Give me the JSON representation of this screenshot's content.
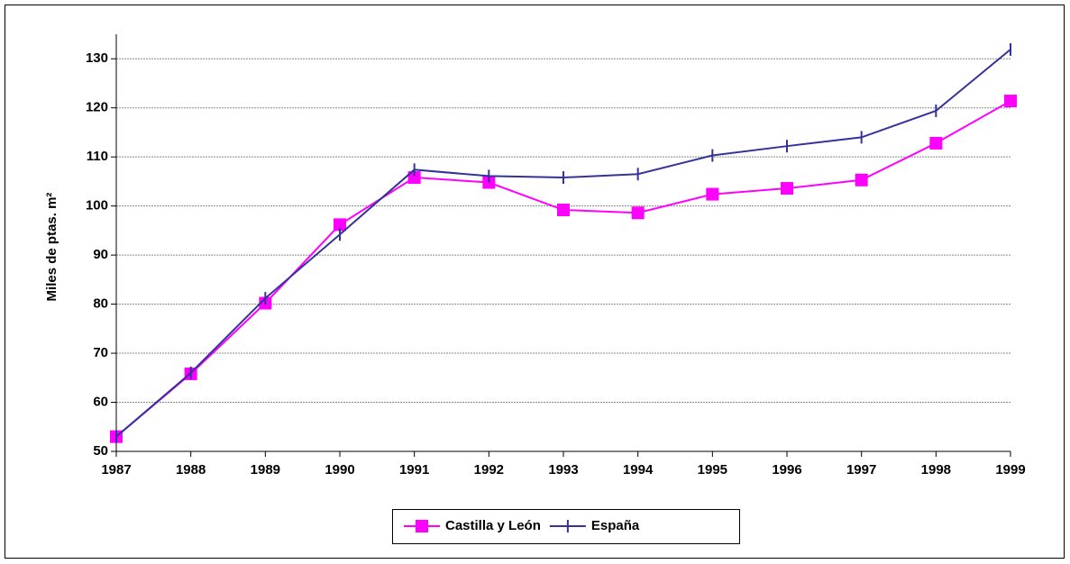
{
  "chart_data": {
    "type": "line",
    "y_label": "Miles de ptas. m²",
    "x": [
      1987,
      1988,
      1989,
      1990,
      1991,
      1992,
      1993,
      1994,
      1995,
      1996,
      1997,
      1998,
      1999
    ],
    "xlim": [
      1987,
      1999
    ],
    "xticks": [
      1987,
      1988,
      1989,
      1990,
      1991,
      1992,
      1993,
      1994,
      1995,
      1996,
      1997,
      1998,
      1999
    ],
    "ylim": [
      50,
      135
    ],
    "yticks": [
      50,
      60,
      70,
      80,
      90,
      100,
      110,
      120,
      130
    ],
    "grid": true,
    "legend": "bottom",
    "series": [
      {
        "name": "Castilla y León",
        "color": "#ff00ff",
        "marker": "square",
        "values": [
          53,
          65.8,
          80.2,
          96.2,
          105.8,
          104.8,
          99.2,
          98.6,
          102.4,
          103.6,
          105.3,
          112.8,
          121.4
        ]
      },
      {
        "name": "España",
        "color": "#333399",
        "marker": "dash",
        "values": [
          53,
          66,
          81.2,
          94.2,
          107.4,
          106.1,
          105.8,
          106.5,
          110.3,
          112.2,
          114,
          119.4,
          131.9
        ]
      }
    ]
  }
}
